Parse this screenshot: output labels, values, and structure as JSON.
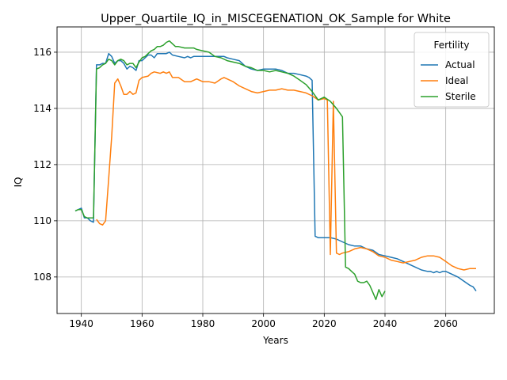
{
  "chart_data": {
    "type": "line",
    "title": "Upper_Quartile_IQ_in_MISCEGENATION_OK_Sample for White",
    "xlabel": "Years",
    "ylabel": "IQ",
    "xlim": [
      1932,
      2076
    ],
    "ylim": [
      106.7,
      116.9
    ],
    "xticks": [
      1940,
      1960,
      1980,
      2000,
      2020,
      2040,
      2060
    ],
    "yticks": [
      108,
      110,
      112,
      114,
      116
    ],
    "grid": true,
    "legend": {
      "title": "Fertility",
      "placement": "top-right"
    },
    "series": [
      {
        "name": "Actual",
        "color": "#1f77b4",
        "points": [
          [
            1938,
            110.35
          ],
          [
            1939,
            110.4
          ],
          [
            1940,
            110.45
          ],
          [
            1941,
            110.1
          ],
          [
            1942,
            110.1
          ],
          [
            1943,
            110.0
          ],
          [
            1944,
            109.95
          ],
          [
            1945,
            115.55
          ],
          [
            1946,
            115.55
          ],
          [
            1947,
            115.6
          ],
          [
            1948,
            115.6
          ],
          [
            1949,
            115.95
          ],
          [
            1950,
            115.85
          ],
          [
            1951,
            115.6
          ],
          [
            1952,
            115.7
          ],
          [
            1953,
            115.7
          ],
          [
            1954,
            115.6
          ],
          [
            1955,
            115.4
          ],
          [
            1956,
            115.5
          ],
          [
            1957,
            115.45
          ],
          [
            1958,
            115.35
          ],
          [
            1959,
            115.7
          ],
          [
            1960,
            115.7
          ],
          [
            1961,
            115.8
          ],
          [
            1962,
            115.9
          ],
          [
            1963,
            115.9
          ],
          [
            1964,
            115.8
          ],
          [
            1965,
            115.95
          ],
          [
            1966,
            115.95
          ],
          [
            1967,
            115.95
          ],
          [
            1968,
            115.95
          ],
          [
            1969,
            116.0
          ],
          [
            1970,
            115.9
          ],
          [
            1972,
            115.85
          ],
          [
            1974,
            115.8
          ],
          [
            1975,
            115.85
          ],
          [
            1976,
            115.8
          ],
          [
            1977,
            115.85
          ],
          [
            1980,
            115.85
          ],
          [
            1981,
            115.85
          ],
          [
            1982,
            115.85
          ],
          [
            1983,
            115.85
          ],
          [
            1985,
            115.85
          ],
          [
            1987,
            115.85
          ],
          [
            1988,
            115.8
          ],
          [
            1990,
            115.75
          ],
          [
            1992,
            115.7
          ],
          [
            1994,
            115.5
          ],
          [
            1996,
            115.4
          ],
          [
            1998,
            115.35
          ],
          [
            2000,
            115.4
          ],
          [
            2002,
            115.4
          ],
          [
            2004,
            115.4
          ],
          [
            2006,
            115.35
          ],
          [
            2008,
            115.25
          ],
          [
            2010,
            115.25
          ],
          [
            2012,
            115.2
          ],
          [
            2014,
            115.15
          ],
          [
            2015,
            115.1
          ],
          [
            2016,
            115.0
          ],
          [
            2017,
            109.45
          ],
          [
            2018,
            109.4
          ],
          [
            2020,
            109.4
          ],
          [
            2022,
            109.4
          ],
          [
            2024,
            109.35
          ],
          [
            2026,
            109.25
          ],
          [
            2028,
            109.15
          ],
          [
            2030,
            109.1
          ],
          [
            2032,
            109.1
          ],
          [
            2034,
            109.0
          ],
          [
            2036,
            108.95
          ],
          [
            2038,
            108.8
          ],
          [
            2040,
            108.75
          ],
          [
            2042,
            108.7
          ],
          [
            2044,
            108.65
          ],
          [
            2046,
            108.55
          ],
          [
            2048,
            108.45
          ],
          [
            2050,
            108.35
          ],
          [
            2052,
            108.25
          ],
          [
            2054,
            108.2
          ],
          [
            2055,
            108.2
          ],
          [
            2056,
            108.15
          ],
          [
            2057,
            108.2
          ],
          [
            2058,
            108.15
          ],
          [
            2059,
            108.2
          ],
          [
            2060,
            108.2
          ],
          [
            2062,
            108.1
          ],
          [
            2064,
            108.0
          ],
          [
            2066,
            107.85
          ],
          [
            2068,
            107.7
          ],
          [
            2069,
            107.65
          ],
          [
            2070,
            107.5
          ]
        ]
      },
      {
        "name": "Ideal",
        "color": "#ff7f0e",
        "points": [
          [
            1945,
            110.05
          ],
          [
            1946,
            109.9
          ],
          [
            1947,
            109.85
          ],
          [
            1948,
            110.0
          ],
          [
            1949,
            111.5
          ],
          [
            1950,
            113.0
          ],
          [
            1951,
            114.9
          ],
          [
            1952,
            115.05
          ],
          [
            1953,
            114.8
          ],
          [
            1954,
            114.5
          ],
          [
            1955,
            114.5
          ],
          [
            1956,
            114.6
          ],
          [
            1957,
            114.5
          ],
          [
            1958,
            114.55
          ],
          [
            1959,
            115.0
          ],
          [
            1960,
            115.1
          ],
          [
            1962,
            115.15
          ],
          [
            1963,
            115.25
          ],
          [
            1964,
            115.3
          ],
          [
            1966,
            115.25
          ],
          [
            1967,
            115.3
          ],
          [
            1968,
            115.25
          ],
          [
            1969,
            115.3
          ],
          [
            1970,
            115.1
          ],
          [
            1972,
            115.1
          ],
          [
            1974,
            114.95
          ],
          [
            1976,
            114.95
          ],
          [
            1978,
            115.05
          ],
          [
            1980,
            114.95
          ],
          [
            1982,
            114.95
          ],
          [
            1984,
            114.9
          ],
          [
            1986,
            115.05
          ],
          [
            1987,
            115.1
          ],
          [
            1988,
            115.05
          ],
          [
            1990,
            114.95
          ],
          [
            1992,
            114.8
          ],
          [
            1994,
            114.7
          ],
          [
            1996,
            114.6
          ],
          [
            1998,
            114.55
          ],
          [
            2000,
            114.6
          ],
          [
            2002,
            114.65
          ],
          [
            2004,
            114.65
          ],
          [
            2006,
            114.7
          ],
          [
            2008,
            114.65
          ],
          [
            2010,
            114.65
          ],
          [
            2012,
            114.6
          ],
          [
            2014,
            114.55
          ],
          [
            2016,
            114.45
          ],
          [
            2018,
            114.3
          ],
          [
            2020,
            114.35
          ],
          [
            2021,
            114.3
          ],
          [
            2022,
            108.8
          ],
          [
            2023,
            114.25
          ],
          [
            2024,
            108.85
          ],
          [
            2025,
            108.8
          ],
          [
            2026,
            108.85
          ],
          [
            2028,
            108.9
          ],
          [
            2030,
            109.0
          ],
          [
            2032,
            109.05
          ],
          [
            2034,
            109.0
          ],
          [
            2036,
            108.9
          ],
          [
            2038,
            108.75
          ],
          [
            2040,
            108.7
          ],
          [
            2042,
            108.6
          ],
          [
            2044,
            108.55
          ],
          [
            2046,
            108.5
          ],
          [
            2048,
            108.55
          ],
          [
            2050,
            108.6
          ],
          [
            2052,
            108.7
          ],
          [
            2054,
            108.75
          ],
          [
            2056,
            108.75
          ],
          [
            2058,
            108.7
          ],
          [
            2060,
            108.55
          ],
          [
            2062,
            108.4
          ],
          [
            2064,
            108.3
          ],
          [
            2066,
            108.25
          ],
          [
            2068,
            108.3
          ],
          [
            2070,
            108.3
          ]
        ]
      },
      {
        "name": "Sterile",
        "color": "#2ca02c",
        "points": [
          [
            1938,
            110.35
          ],
          [
            1939,
            110.4
          ],
          [
            1940,
            110.4
          ],
          [
            1941,
            110.15
          ],
          [
            1942,
            110.1
          ],
          [
            1944,
            110.1
          ],
          [
            1945,
            115.4
          ],
          [
            1946,
            115.45
          ],
          [
            1947,
            115.55
          ],
          [
            1948,
            115.6
          ],
          [
            1949,
            115.75
          ],
          [
            1950,
            115.7
          ],
          [
            1951,
            115.55
          ],
          [
            1952,
            115.7
          ],
          [
            1953,
            115.75
          ],
          [
            1954,
            115.7
          ],
          [
            1955,
            115.55
          ],
          [
            1956,
            115.6
          ],
          [
            1957,
            115.6
          ],
          [
            1958,
            115.45
          ],
          [
            1959,
            115.65
          ],
          [
            1960,
            115.8
          ],
          [
            1961,
            115.85
          ],
          [
            1962,
            115.95
          ],
          [
            1963,
            116.05
          ],
          [
            1964,
            116.1
          ],
          [
            1965,
            116.2
          ],
          [
            1966,
            116.2
          ],
          [
            1967,
            116.25
          ],
          [
            1968,
            116.35
          ],
          [
            1969,
            116.4
          ],
          [
            1970,
            116.3
          ],
          [
            1971,
            116.2
          ],
          [
            1972,
            116.2
          ],
          [
            1974,
            116.15
          ],
          [
            1976,
            116.15
          ],
          [
            1977,
            116.15
          ],
          [
            1978,
            116.1
          ],
          [
            1980,
            116.05
          ],
          [
            1982,
            116.0
          ],
          [
            1984,
            115.85
          ],
          [
            1986,
            115.8
          ],
          [
            1988,
            115.7
          ],
          [
            1990,
            115.65
          ],
          [
            1992,
            115.6
          ],
          [
            1994,
            115.5
          ],
          [
            1996,
            115.45
          ],
          [
            1998,
            115.35
          ],
          [
            2000,
            115.35
          ],
          [
            2002,
            115.3
          ],
          [
            2004,
            115.35
          ],
          [
            2006,
            115.3
          ],
          [
            2008,
            115.25
          ],
          [
            2010,
            115.15
          ],
          [
            2012,
            115.0
          ],
          [
            2014,
            114.85
          ],
          [
            2016,
            114.6
          ],
          [
            2018,
            114.3
          ],
          [
            2020,
            114.4
          ],
          [
            2022,
            114.25
          ],
          [
            2024,
            114.0
          ],
          [
            2025,
            113.85
          ],
          [
            2026,
            113.7
          ],
          [
            2027,
            108.35
          ],
          [
            2028,
            108.3
          ],
          [
            2029,
            108.2
          ],
          [
            2030,
            108.1
          ],
          [
            2031,
            107.85
          ],
          [
            2032,
            107.8
          ],
          [
            2033,
            107.8
          ],
          [
            2034,
            107.85
          ],
          [
            2035,
            107.7
          ],
          [
            2036,
            107.45
          ],
          [
            2037,
            107.2
          ],
          [
            2038,
            107.55
          ],
          [
            2039,
            107.3
          ],
          [
            2040,
            107.5
          ]
        ]
      }
    ]
  }
}
